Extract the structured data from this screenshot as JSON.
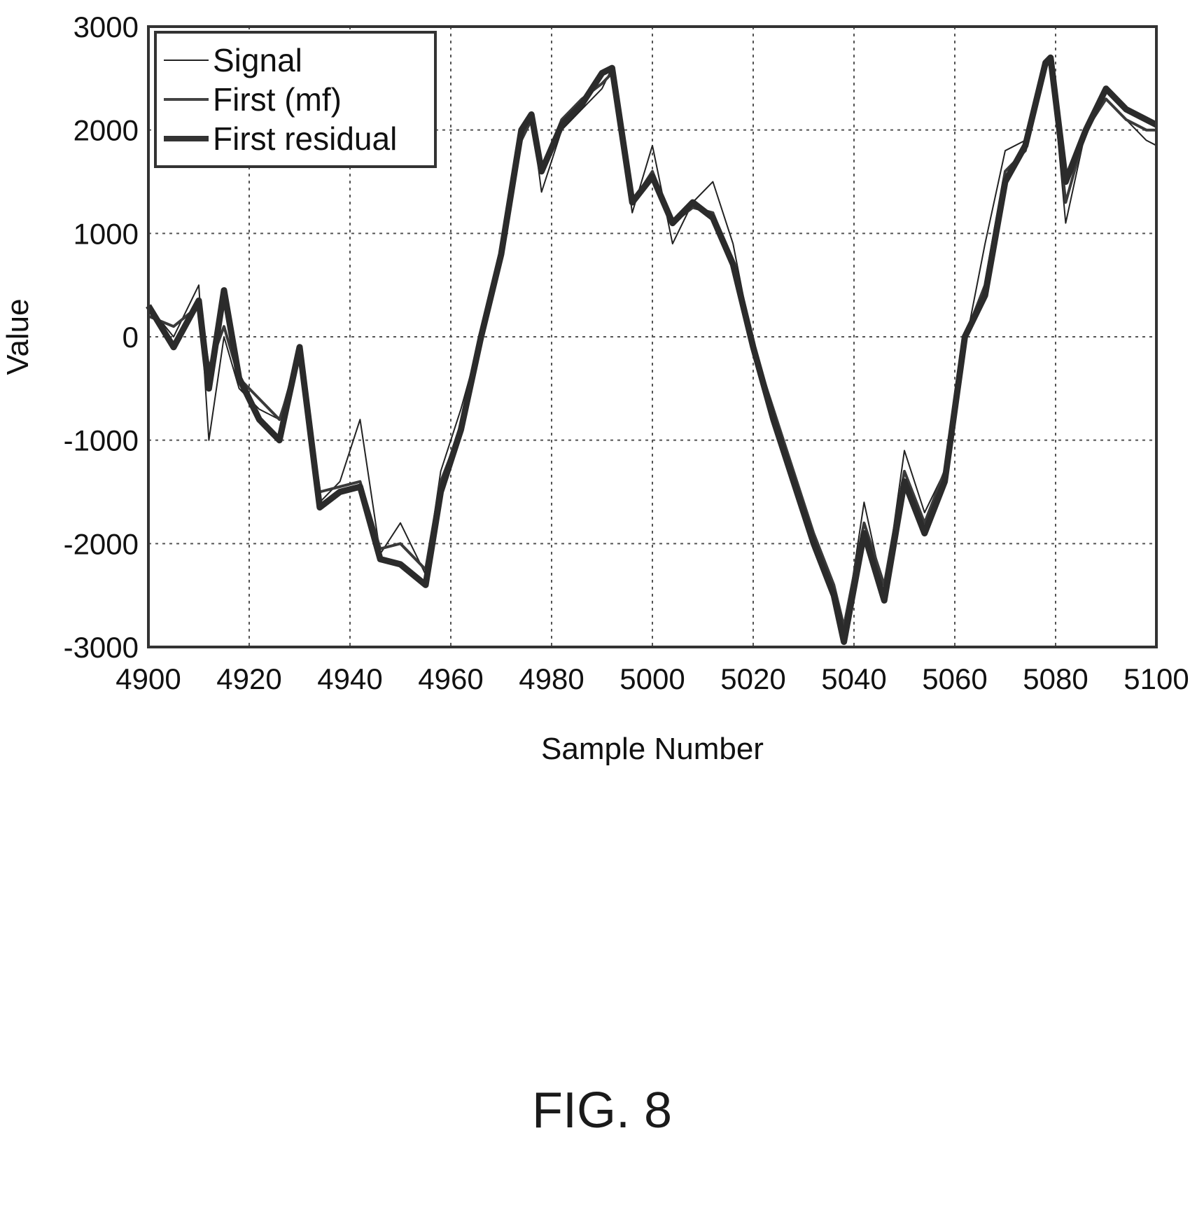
{
  "chart_data": {
    "type": "line",
    "xlabel": "Sample Number",
    "ylabel": "Value",
    "xlim": [
      4900,
      5100
    ],
    "ylim": [
      -3000,
      3000
    ],
    "x_ticks": [
      "4900",
      "4920",
      "4940",
      "4960",
      "4980",
      "5000",
      "5020",
      "5040",
      "5060",
      "5080",
      "5100"
    ],
    "y_ticks": [
      "3000",
      "2000",
      "1000",
      "0",
      "-1000",
      "-2000",
      "-3000"
    ],
    "grid": true,
    "legend_position": "top-left",
    "x": [
      4900,
      4905,
      4910,
      4912,
      4915,
      4918,
      4922,
      4926,
      4930,
      4934,
      4938,
      4942,
      4946,
      4950,
      4955,
      4958,
      4962,
      4966,
      4970,
      4974,
      4976,
      4978,
      4982,
      4986,
      4990,
      4992,
      4996,
      5000,
      5004,
      5008,
      5012,
      5016,
      5020,
      5024,
      5028,
      5032,
      5036,
      5038,
      5042,
      5046,
      5050,
      5054,
      5058,
      5062,
      5066,
      5070,
      5074,
      5078,
      5079,
      5082,
      5086,
      5090,
      5094,
      5098,
      5100
    ],
    "series": [
      {
        "name": "Signal",
        "values": [
          300,
          0,
          500,
          -1000,
          0,
          -500,
          -700,
          -800,
          -100,
          -1600,
          -1400,
          -800,
          -2100,
          -1800,
          -2300,
          -1300,
          -700,
          0,
          900,
          2000,
          2150,
          1400,
          2000,
          2200,
          2400,
          2600,
          1200,
          1850,
          900,
          1300,
          1500,
          900,
          -100,
          -800,
          -1400,
          -2000,
          -2500,
          -2900,
          -1600,
          -2500,
          -1100,
          -1700,
          -1300,
          -100,
          900,
          1800,
          1900,
          2600,
          2700,
          1100,
          2000,
          2300,
          2100,
          1900,
          1850
        ]
      },
      {
        "name": "First (mf)",
        "values": [
          200,
          100,
          300,
          -300,
          100,
          -400,
          -600,
          -800,
          -200,
          -1500,
          -1450,
          -1400,
          -2050,
          -2000,
          -2250,
          -1400,
          -900,
          0,
          800,
          1900,
          2100,
          1600,
          2100,
          2300,
          2450,
          2550,
          1300,
          1600,
          1100,
          1250,
          1200,
          700,
          -100,
          -700,
          -1300,
          -1900,
          -2400,
          -2800,
          -1800,
          -2400,
          -1300,
          -1800,
          -1300,
          0,
          500,
          1600,
          1800,
          2600,
          2700,
          1300,
          2000,
          2300,
          2100,
          2000,
          2000
        ]
      },
      {
        "name": "First residual",
        "values": [
          300,
          -100,
          350,
          -500,
          450,
          -400,
          -800,
          -1000,
          -100,
          -1650,
          -1500,
          -1450,
          -2150,
          -2200,
          -2400,
          -1500,
          -900,
          0,
          800,
          2000,
          2150,
          1600,
          2050,
          2250,
          2550,
          2600,
          1300,
          1550,
          1100,
          1300,
          1150,
          700,
          -100,
          -800,
          -1400,
          -2000,
          -2500,
          -2950,
          -1900,
          -2550,
          -1400,
          -1900,
          -1400,
          0,
          400,
          1500,
          1850,
          2650,
          2700,
          1500,
          2000,
          2400,
          2200,
          2100,
          2050
        ]
      }
    ],
    "residual_overlay_note_removed": ""
  },
  "legend": {
    "items": [
      "Signal",
      "First (mf)",
      "First residual"
    ]
  },
  "figure_label": "FIG. 8"
}
